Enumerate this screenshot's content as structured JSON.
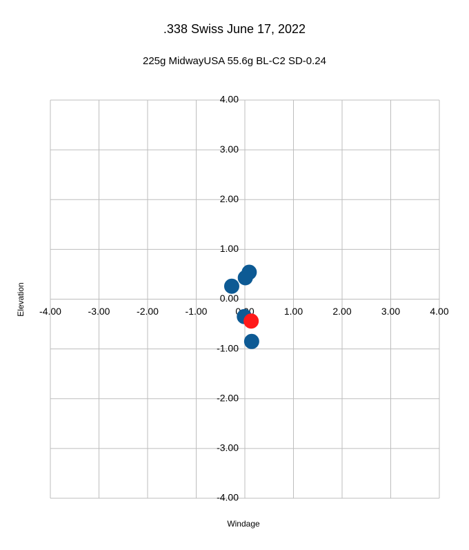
{
  "chart_data": {
    "type": "scatter",
    "title": ".338 Swiss June 17, 2022",
    "subtitle": "225g MidwayUSA 55.6g BL-C2 SD-0.24",
    "x_label": "Windage",
    "y_label": "Elevation",
    "xlim": [
      -4,
      4
    ],
    "ylim": [
      -4,
      4
    ],
    "xticks": [
      {
        "value": -4,
        "label": "-4.00"
      },
      {
        "value": -3,
        "label": "-3.00"
      },
      {
        "value": -2,
        "label": "-2.00"
      },
      {
        "value": -1,
        "label": "-1.00"
      },
      {
        "value": 0,
        "label": "0.00"
      },
      {
        "value": 1,
        "label": "1.00"
      },
      {
        "value": 2,
        "label": "2.00"
      },
      {
        "value": 3,
        "label": "3.00"
      },
      {
        "value": 4,
        "label": "4.00"
      }
    ],
    "yticks": [
      {
        "value": -4,
        "label": "-4.00"
      },
      {
        "value": -3,
        "label": "-3.00"
      },
      {
        "value": -2,
        "label": "-2.00"
      },
      {
        "value": -1,
        "label": "-1.00"
      },
      {
        "value": 0,
        "label": "0.00"
      },
      {
        "value": 1,
        "label": "1.00"
      },
      {
        "value": 2,
        "label": "2.00"
      },
      {
        "value": 3,
        "label": "3.00"
      },
      {
        "value": 4,
        "label": "4.00"
      }
    ],
    "grid": true,
    "series": [
      {
        "color": "#0d5a94",
        "x": [
          0.09,
          0.01,
          -0.27,
          -0.01,
          0.14
        ],
        "values": [
          0.54,
          0.43,
          0.26,
          -0.35,
          -0.85
        ]
      },
      {
        "color": "#ff1a1a",
        "x": [
          0.13
        ],
        "values": [
          -0.44
        ]
      }
    ]
  }
}
